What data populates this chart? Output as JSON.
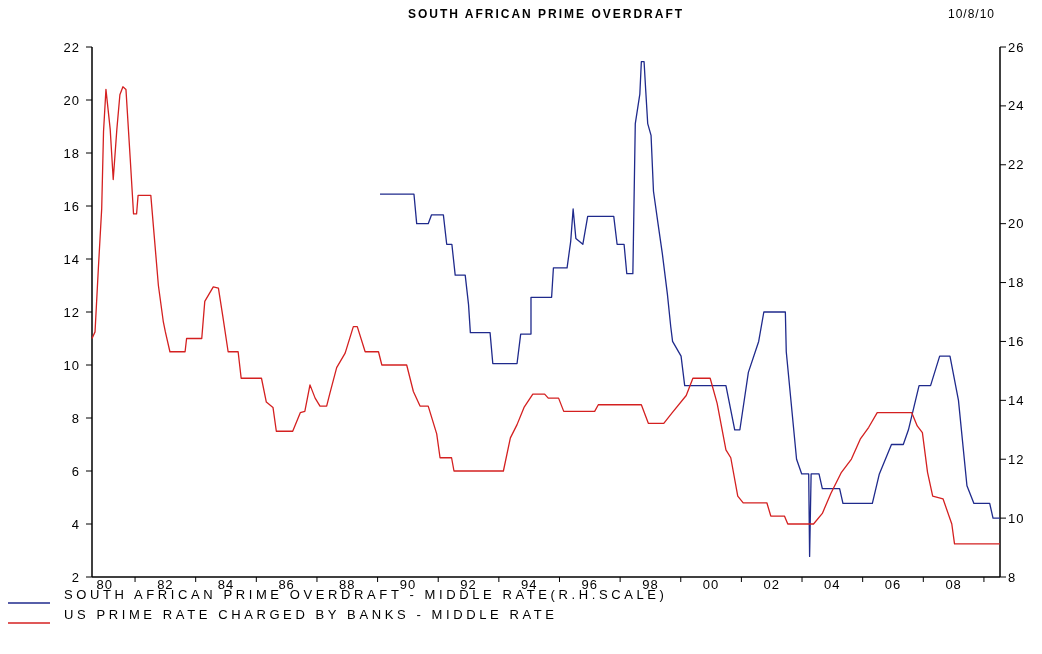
{
  "chart_data": {
    "type": "line",
    "title": "SOUTH AFRICAN PRIME OVERDRAFT",
    "annotations": [
      "10/8/10"
    ],
    "legend": "bottom",
    "xlim": [
      1979.58,
      2009.53
    ],
    "xticks": [
      {
        "value": 1980,
        "label": "80"
      },
      {
        "value": 1981,
        "label": null
      },
      {
        "value": 1982,
        "label": "82"
      },
      {
        "value": 1983,
        "label": null
      },
      {
        "value": 1984,
        "label": "84"
      },
      {
        "value": 1985,
        "label": null
      },
      {
        "value": 1986,
        "label": "86"
      },
      {
        "value": 1987,
        "label": null
      },
      {
        "value": 1988,
        "label": "88"
      },
      {
        "value": 1989,
        "label": null
      },
      {
        "value": 1990,
        "label": "90"
      },
      {
        "value": 1991,
        "label": null
      },
      {
        "value": 1992,
        "label": "92"
      },
      {
        "value": 1993,
        "label": null
      },
      {
        "value": 1994,
        "label": "94"
      },
      {
        "value": 1995,
        "label": null
      },
      {
        "value": 1996,
        "label": "96"
      },
      {
        "value": 1997,
        "label": null
      },
      {
        "value": 1998,
        "label": "98"
      },
      {
        "value": 1999,
        "label": null
      },
      {
        "value": 2000,
        "label": "00"
      },
      {
        "value": 2001,
        "label": null
      },
      {
        "value": 2002,
        "label": "02"
      },
      {
        "value": 2003,
        "label": null
      },
      {
        "value": 2004,
        "label": "04"
      },
      {
        "value": 2005,
        "label": null
      },
      {
        "value": 2006,
        "label": "06"
      },
      {
        "value": 2007,
        "label": null
      },
      {
        "value": 2008,
        "label": "08"
      },
      {
        "value": 2009,
        "label": null
      }
    ],
    "ylim": [
      2,
      22
    ],
    "yticks": [
      2,
      4,
      6,
      8,
      10,
      12,
      14,
      16,
      18,
      20,
      22
    ],
    "y2lim": [
      8,
      26
    ],
    "y2ticks": [
      8,
      10,
      12,
      14,
      16,
      18,
      20,
      22,
      24,
      26
    ],
    "series": [
      {
        "name": "SOUTH AFRICAN PRIME OVERDRAFT - MIDDLE RATE(R.H.SCALE)",
        "color": "#1f2a8c",
        "axis": "y2",
        "x": [
          1989.08,
          1990.2,
          1990.29,
          1990.67,
          1990.78,
          1991.17,
          1991.28,
          1991.45,
          1991.56,
          1991.89,
          1992.0,
          1992.06,
          1992.71,
          1992.8,
          1993.6,
          1993.72,
          1994.06,
          1994.06,
          1994.74,
          1994.8,
          1995.25,
          1995.37,
          1995.45,
          1995.54,
          1995.77,
          1995.93,
          1996.79,
          1996.9,
          1997.13,
          1997.22,
          1997.42,
          1997.5,
          1997.65,
          1997.7,
          1997.79,
          1997.84,
          1997.91,
          1998.02,
          1998.1,
          1998.25,
          1998.39,
          1998.56,
          1998.67,
          1998.73,
          1999.01,
          1999.13,
          2000.49,
          2000.78,
          2000.95,
          2001.23,
          2001.57,
          2001.74,
          2002.45,
          2002.48,
          2002.82,
          2002.99,
          2003.22,
          2003.25,
          2003.3,
          2003.56,
          2003.67,
          2004.24,
          2004.35,
          2005.32,
          2005.55,
          2005.95,
          2006.34,
          2006.51,
          2006.86,
          2007.24,
          2007.54,
          2007.88,
          2008.16,
          2008.44,
          2008.67,
          2009.19,
          2009.3,
          2009.53
        ],
        "values": [
          21,
          21,
          20,
          20,
          20.3,
          20.3,
          19.3,
          19.3,
          18.25,
          18.25,
          17.25,
          16.3,
          16.3,
          15.25,
          15.25,
          16.25,
          16.25,
          17.5,
          17.5,
          18.5,
          18.5,
          19.4,
          20.5,
          19.5,
          19.3,
          20.25,
          20.25,
          19.3,
          19.3,
          18.3,
          18.3,
          23.4,
          24.4,
          25.5,
          25.5,
          24.6,
          23.4,
          23,
          21.1,
          20,
          19,
          17.6,
          16.5,
          16,
          15.5,
          14.5,
          14.5,
          13,
          13,
          14.95,
          16,
          17,
          17,
          15.65,
          12,
          11.5,
          11.5,
          8.7,
          11.5,
          11.5,
          11,
          11,
          10.5,
          10.5,
          11.5,
          12.5,
          12.5,
          13,
          14.5,
          14.5,
          15.5,
          15.5,
          14,
          11.1,
          10.5,
          10.5,
          10,
          10
        ]
      },
      {
        "name": "US PRIME RATE CHARGED BY BANKS - MIDDLE RATE",
        "color": "#d42020",
        "x": [
          1979.58,
          1979.68,
          1979.79,
          1979.9,
          1979.96,
          1980.04,
          1980.18,
          1980.28,
          1980.4,
          1980.5,
          1980.6,
          1980.7,
          1980.84,
          1980.95,
          1981.05,
          1981.1,
          1981.52,
          1981.63,
          1981.77,
          1981.93,
          1982.0,
          1982.15,
          1982.65,
          1982.7,
          1983.2,
          1983.3,
          1983.58,
          1983.75,
          1983.9,
          1984.07,
          1984.4,
          1984.5,
          1985.17,
          1985.33,
          1985.55,
          1985.66,
          1986.2,
          1986.45,
          1986.6,
          1986.77,
          1986.94,
          1987.1,
          1987.32,
          1987.43,
          1987.65,
          1987.93,
          1988.2,
          1988.33,
          1988.59,
          1989.03,
          1989.14,
          1989.96,
          1990.18,
          1990.4,
          1990.67,
          1990.95,
          1991.06,
          1991.44,
          1991.52,
          1993.15,
          1993.38,
          1993.6,
          1993.83,
          1994.12,
          1994.51,
          1994.63,
          1994.97,
          1995.14,
          1996.16,
          1996.28,
          1997.7,
          1997.93,
          1998.44,
          1998.72,
          1999.18,
          1999.4,
          1999.97,
          2000.2,
          2000.49,
          2000.65,
          2000.88,
          2001.06,
          2001.84,
          2001.97,
          2002.42,
          2002.53,
          2003.38,
          2003.67,
          2003.95,
          2004.3,
          2004.63,
          2004.92,
          2005.2,
          2005.48,
          2006.62,
          2006.8,
          2006.97,
          2007.14,
          2007.31,
          2007.65,
          2007.94,
          2008.03,
          2009.53
        ],
        "values": [
          11,
          11.25,
          13.65,
          15.9,
          18.8,
          20.4,
          18.9,
          17,
          18.9,
          20.2,
          20.5,
          20.4,
          17.8,
          15.7,
          15.7,
          16.4,
          16.4,
          14.9,
          13,
          11.65,
          11.25,
          10.5,
          10.5,
          11,
          11,
          12.4,
          12.95,
          12.9,
          11.8,
          10.5,
          10.5,
          9.5,
          9.5,
          8.6,
          8.4,
          7.5,
          7.5,
          8.2,
          8.25,
          9.25,
          8.75,
          8.45,
          8.45,
          8.95,
          9.9,
          10.45,
          11.45,
          11.45,
          10.5,
          10.5,
          10,
          10,
          9,
          8.45,
          8.45,
          7.4,
          6.5,
          6.5,
          6,
          6,
          7.25,
          7.75,
          8.4,
          8.9,
          8.9,
          8.75,
          8.75,
          8.25,
          8.25,
          8.5,
          8.5,
          7.8,
          7.8,
          8.2,
          8.85,
          9.5,
          9.5,
          8.55,
          6.8,
          6.5,
          5.05,
          4.8,
          4.8,
          4.3,
          4.3,
          4,
          4,
          4.4,
          5.15,
          5.95,
          6.45,
          7.2,
          7.65,
          8.2,
          8.2,
          7.7,
          7.45,
          5.95,
          5.05,
          4.95,
          4,
          3.25,
          3.25
        ]
      }
    ]
  }
}
